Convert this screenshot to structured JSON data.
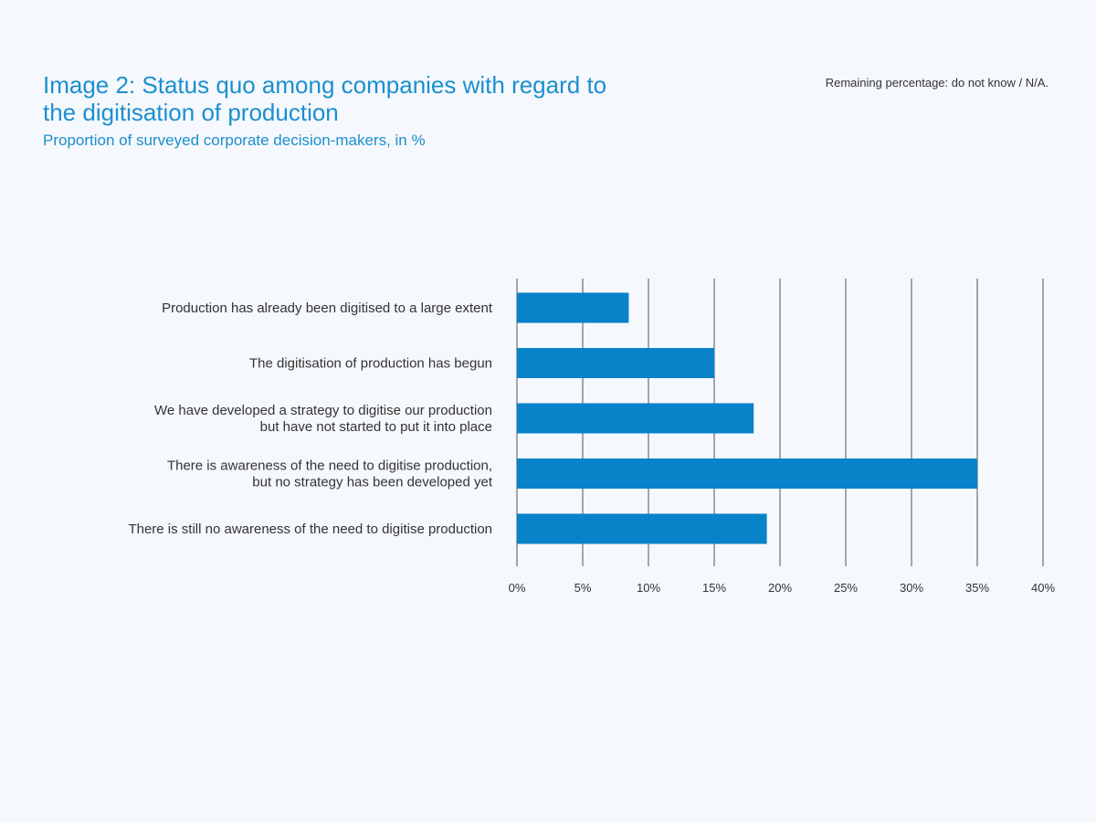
{
  "header": {
    "title": "Image 2: Status quo among companies with regard to the digitisation of production",
    "subtitle": "Proportion of surveyed corporate decision-makers, in %",
    "note": "Remaining percentage: do not know / N/A."
  },
  "colors": {
    "bar": "#0882c8",
    "title": "#1b8fcf",
    "grid": "#555555",
    "text": "#333333",
    "background": "#f5f8fc"
  },
  "chart_data": {
    "type": "bar",
    "orientation": "horizontal",
    "categories": [
      [
        "Production has already been digitised to a large extent"
      ],
      [
        "The digitisation of production has begun"
      ],
      [
        "We have developed a strategy to digitise our production",
        "but have not started to put it into place"
      ],
      [
        "There is awareness of the need to digitise production,",
        "but no strategy has been developed yet"
      ],
      [
        "There is still no awareness of the need to digitise production"
      ]
    ],
    "values": [
      8.5,
      15,
      18,
      35,
      19
    ],
    "xlim": [
      0,
      40
    ],
    "xticks": [
      0,
      5,
      10,
      15,
      20,
      25,
      30,
      35,
      40
    ],
    "xtick_labels": [
      "0%",
      "5%",
      "10%",
      "15%",
      "20%",
      "25%",
      "30%",
      "35%",
      "40%"
    ],
    "grid": true,
    "legend": "none"
  }
}
